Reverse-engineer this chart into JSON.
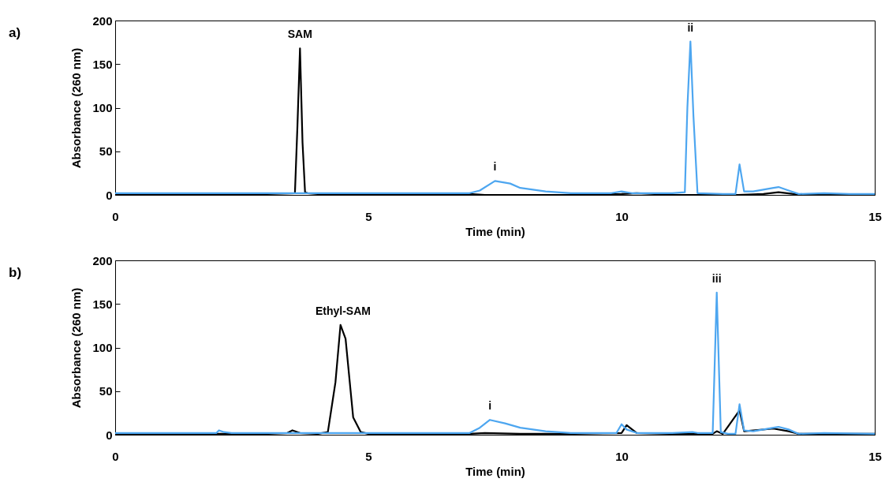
{
  "chart_data": [
    {
      "type": "line",
      "xlabel": "Time (min)",
      "ylabel": "Absorbance (260 nm)",
      "xlim": [
        0,
        15
      ],
      "xticks": [
        0,
        5,
        10,
        15
      ],
      "ylim": [
        0,
        200
      ],
      "yticks": [
        0,
        50,
        100,
        150,
        200
      ],
      "grid": false,
      "series": [
        {
          "color": "#000000",
          "x": [
            0,
            1,
            2,
            3,
            3.55,
            3.6,
            3.65,
            3.7,
            3.75,
            3.8,
            4,
            5,
            6,
            7,
            7.3,
            8,
            9,
            10,
            10.3,
            11,
            11.3,
            11.4,
            11.5,
            12,
            12.3,
            12.8,
            13.1,
            13.4,
            14,
            15
          ],
          "values": [
            1,
            1,
            1,
            1,
            2,
            80,
            168,
            60,
            3,
            2,
            1,
            1,
            1,
            1,
            0,
            0,
            0,
            1,
            2,
            0,
            0,
            0,
            0,
            0,
            0,
            1,
            3,
            1,
            0,
            0
          ]
        },
        {
          "color": "#4da6f0",
          "x": [
            0,
            1,
            2,
            3,
            4,
            5,
            6,
            7,
            7.2,
            7.5,
            7.8,
            8,
            8.5,
            9,
            9.8,
            10,
            10.2,
            11,
            11.25,
            11.3,
            11.36,
            11.42,
            11.5,
            12,
            12.25,
            12.33,
            12.42,
            12.6,
            12.8,
            13,
            13.1,
            13.3,
            13.5,
            14,
            14.5,
            15
          ],
          "values": [
            2,
            2,
            2,
            2,
            2,
            2,
            2,
            2,
            5,
            16,
            13,
            8,
            4,
            2,
            2,
            4,
            2,
            2,
            3,
            100,
            176,
            90,
            2,
            1,
            1,
            35,
            4,
            4,
            6,
            8,
            9,
            5,
            1,
            2,
            1,
            1
          ]
        }
      ],
      "annotations": [
        "a)",
        {
          "text": "SAM",
          "x": 3.65,
          "y": 168
        },
        {
          "text": "i",
          "x": 7.5,
          "y": 16
        },
        {
          "text": "ii",
          "x": 11.36,
          "y": 176
        }
      ]
    },
    {
      "type": "line",
      "xlabel": "Time (min)",
      "ylabel": "Absorbance (260 nm)",
      "xlim": [
        0,
        15
      ],
      "xticks": [
        0,
        5,
        10,
        15
      ],
      "ylim": [
        0,
        200
      ],
      "yticks": [
        0,
        50,
        100,
        150,
        200
      ],
      "grid": false,
      "series": [
        {
          "color": "#000000",
          "x": [
            0,
            1,
            2,
            3,
            3.4,
            3.5,
            3.65,
            4,
            4.2,
            4.35,
            4.45,
            4.55,
            4.7,
            4.85,
            5,
            6,
            7,
            7.3,
            8,
            9,
            10,
            10.1,
            10.3,
            11,
            11.8,
            11.88,
            12,
            12.33,
            12.42,
            13,
            13.3,
            13.5,
            14,
            15
          ],
          "values": [
            1,
            1,
            1,
            1,
            2,
            5,
            2,
            1,
            3,
            60,
            126,
            110,
            20,
            3,
            1,
            1,
            1,
            2,
            1,
            1,
            2,
            11,
            2,
            1,
            1,
            4,
            1,
            28,
            4,
            7,
            4,
            1,
            1,
            1
          ]
        },
        {
          "color": "#4da6f0",
          "x": [
            0,
            1,
            2,
            2.05,
            2.15,
            2.3,
            3,
            4,
            5,
            6,
            7,
            7.2,
            7.4,
            7.7,
            8,
            8.5,
            9,
            9.9,
            10,
            10.1,
            10.3,
            11,
            11.4,
            11.5,
            11.8,
            11.88,
            11.96,
            12.1,
            12.25,
            12.33,
            12.42,
            12.6,
            12.8,
            13,
            13.1,
            13.3,
            13.5,
            14,
            15
          ],
          "values": [
            2,
            2,
            2,
            5,
            3,
            2,
            2,
            2,
            2,
            2,
            2,
            8,
            17,
            13,
            8,
            4,
            2,
            2,
            12,
            6,
            2,
            2,
            3,
            2,
            2,
            163,
            3,
            1,
            1,
            35,
            5,
            4,
            6,
            8,
            9,
            6,
            1,
            2,
            1
          ]
        }
      ],
      "annotations": [
        "b)",
        {
          "text": "Ethyl-SAM",
          "x": 4.5,
          "y": 126
        },
        {
          "text": "i",
          "x": 7.4,
          "y": 17
        },
        {
          "text": "iii",
          "x": 11.88,
          "y": 163
        }
      ]
    }
  ]
}
